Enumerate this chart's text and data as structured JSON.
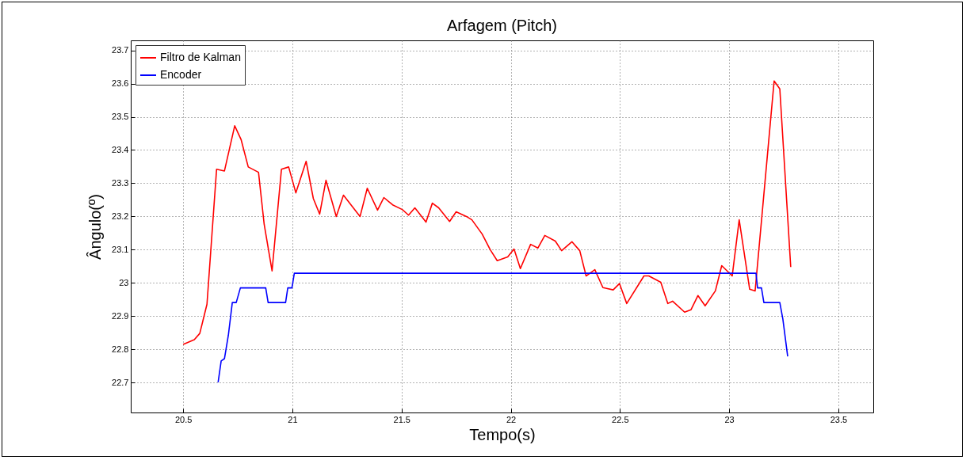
{
  "chart_data": {
    "type": "line",
    "title": "Arfagem (Pitch)",
    "xlabel": "Tempo(s)",
    "ylabel": "Ângulo(º)",
    "xlim": [
      20.26,
      23.66
    ],
    "xticks": [
      20.5,
      21,
      21.5,
      22,
      22.5,
      23,
      23.5
    ],
    "ylim": [
      22.61,
      23.73
    ],
    "yticks": [
      22.7,
      22.8,
      22.9,
      23,
      23.1,
      23.2,
      23.3,
      23.4,
      23.5,
      23.6,
      23.7
    ],
    "grid": true,
    "legend": "top left",
    "series": [
      {
        "name": "Filtro de Kalman",
        "color": "#ff0000",
        "x": [
          20.5,
          20.551,
          20.576,
          20.609,
          20.653,
          20.689,
          20.736,
          20.765,
          20.798,
          20.845,
          20.871,
          20.907,
          20.95,
          20.983,
          21.016,
          21.063,
          21.096,
          21.125,
          21.154,
          21.201,
          21.234,
          21.31,
          21.343,
          21.39,
          21.419,
          21.459,
          21.503,
          21.532,
          21.561,
          21.612,
          21.641,
          21.67,
          21.72,
          21.75,
          21.797,
          21.822,
          21.869,
          21.906,
          21.938,
          21.986,
          22.015,
          22.044,
          22.091,
          22.124,
          22.156,
          22.204,
          22.233,
          22.28,
          22.316,
          22.345,
          22.385,
          22.422,
          22.469,
          22.498,
          22.531,
          22.61,
          22.632,
          22.687,
          22.719,
          22.741,
          22.796,
          22.825,
          22.857,
          22.89,
          22.937,
          22.966,
          23.014,
          23.046,
          23.094,
          23.119,
          23.206,
          23.232,
          23.282
        ],
        "values": [
          22.815,
          22.829,
          22.848,
          22.936,
          23.342,
          23.337,
          23.473,
          23.432,
          23.349,
          23.333,
          23.176,
          23.036,
          23.342,
          23.349,
          23.271,
          23.366,
          23.254,
          23.207,
          23.309,
          23.2,
          23.264,
          23.2,
          23.285,
          23.219,
          23.257,
          23.235,
          23.221,
          23.204,
          23.226,
          23.183,
          23.24,
          23.226,
          23.185,
          23.214,
          23.2,
          23.19,
          23.147,
          23.1,
          23.067,
          23.078,
          23.102,
          23.043,
          23.116,
          23.105,
          23.143,
          23.126,
          23.097,
          23.124,
          23.097,
          23.021,
          23.04,
          22.986,
          22.979,
          22.998,
          22.938,
          23.021,
          23.021,
          23.002,
          22.938,
          22.945,
          22.912,
          22.919,
          22.962,
          22.931,
          22.976,
          23.052,
          23.021,
          23.19,
          22.981,
          22.976,
          23.608,
          23.584,
          23.048
        ]
      },
      {
        "name": "Encoder",
        "color": "#0000ff",
        "x": [
          20.66,
          20.674,
          20.689,
          20.707,
          20.725,
          20.743,
          20.762,
          20.878,
          20.889,
          20.969,
          20.979,
          20.998,
          21.009,
          23.123,
          23.13,
          23.148,
          23.159,
          23.232,
          23.246,
          23.268
        ],
        "values": [
          22.701,
          22.765,
          22.772,
          22.843,
          22.941,
          22.941,
          22.985,
          22.985,
          22.941,
          22.941,
          22.985,
          22.985,
          23.029,
          23.029,
          22.985,
          22.985,
          22.941,
          22.941,
          22.891,
          22.779
        ]
      }
    ]
  }
}
